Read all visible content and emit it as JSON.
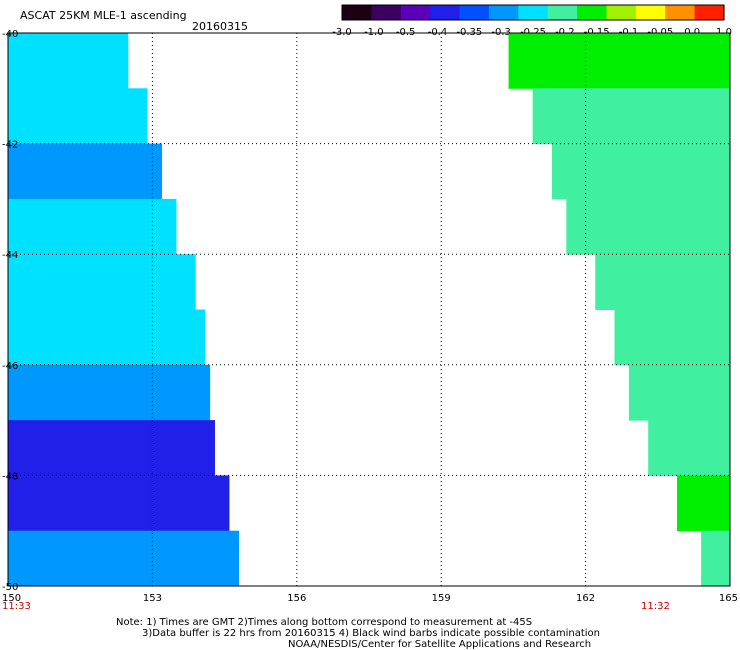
{
  "header": {
    "title": "ASCAT 25KM MLE-1 ascending",
    "date": "20160315"
  },
  "colorbar": {
    "labels": [
      "-3.0",
      "-1.0",
      "-0.5",
      "-0.4",
      "-0.35",
      "-0.3",
      "-0.25",
      "-0.2",
      "-0.15",
      "-0.1",
      "-0.05",
      "0.0",
      "1.0"
    ],
    "colors": [
      "#1a0010",
      "#3c0060",
      "#5a00b8",
      "#2020e8",
      "#0050ff",
      "#0098ff",
      "#00e0ff",
      "#40f0a0",
      "#00ee00",
      "#a0f000",
      "#ffff00",
      "#ff9000",
      "#ff2000"
    ]
  },
  "times": {
    "left": "11:33",
    "right": "11:32"
  },
  "notes": {
    "line1": "Note: 1) Times are GMT 2)Times along bottom correspond to measurement at -45S",
    "line2": "3)Data buffer is 22 hrs from 20160315 4) Black wind barbs indicate possible contamination",
    "line3": "NOAA/NESDIS/Center for Satellite Applications and Research"
  },
  "chart_data": {
    "type": "heatmap",
    "variable": "MLE",
    "x_ticks": [
      "150",
      "153",
      "156",
      "159",
      "162",
      "165"
    ],
    "y_ticks": [
      "-40",
      "-42",
      "-44",
      "-46",
      "-48",
      "-50"
    ],
    "xlim": [
      150,
      165
    ],
    "ylim": [
      -50,
      -40
    ],
    "grid": true,
    "swaths": [
      {
        "side": "west",
        "lat_edges": [
          -40.0,
          -41.0,
          -42.0,
          -43.0,
          -44.0,
          -45.0,
          -46.0,
          -47.0,
          -48.0,
          -49.0,
          -50.0
        ],
        "lon_min": [
          150,
          150,
          150,
          150,
          150,
          150,
          150,
          150,
          150,
          150
        ],
        "lon_max": [
          152.5,
          152.9,
          153.2,
          153.5,
          153.9,
          154.1,
          154.2,
          154.3,
          154.6,
          154.8
        ],
        "mle": [
          -0.22,
          -0.24,
          -0.26,
          -0.25,
          -0.22,
          -0.24,
          -0.28,
          -0.36,
          -0.38,
          -0.27
        ]
      },
      {
        "side": "east",
        "lat_edges": [
          -40.0,
          -41.0,
          -42.0,
          -43.0,
          -44.0,
          -45.0,
          -46.0,
          -47.0,
          -48.0,
          -49.0,
          -50.0
        ],
        "lon_min": [
          160.4,
          160.9,
          161.3,
          161.6,
          162.2,
          162.6,
          162.9,
          163.3,
          163.9,
          164.4
        ],
        "lon_max": [
          165,
          165,
          165,
          165,
          165,
          165,
          165,
          165,
          165,
          165
        ],
        "mle": [
          -0.14,
          -0.18,
          -0.2,
          -0.17,
          -0.16,
          -0.17,
          -0.16,
          -0.17,
          -0.15,
          -0.17
        ]
      }
    ]
  }
}
